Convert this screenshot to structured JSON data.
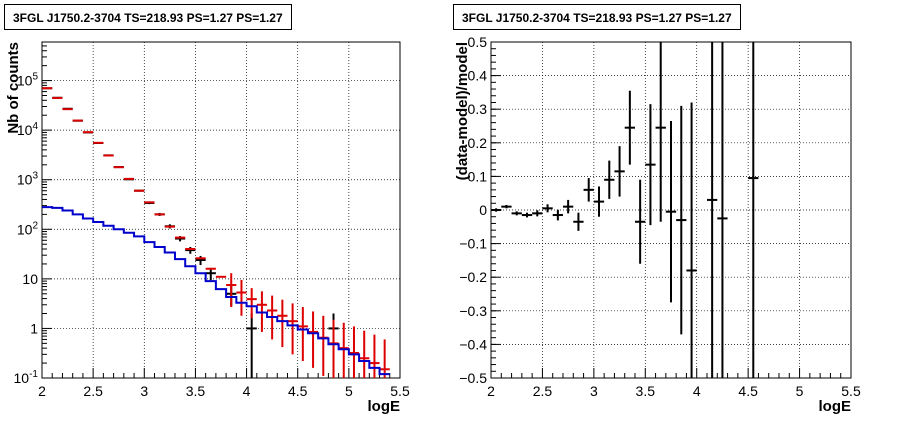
{
  "chart_data": [
    {
      "type": "line",
      "title": "3FGL J1750.2-3704 TS=218.93 PS=1.27 PS=1.27",
      "xlabel": "logE",
      "ylabel": "Nb of counts",
      "xlim": [
        2,
        5.5
      ],
      "ylim": [
        0.1,
        600000
      ],
      "yscale": "log",
      "grid": true,
      "x_ticks": [
        "2",
        "2.5",
        "3",
        "3.5",
        "4",
        "4.5",
        "5",
        "5.5"
      ],
      "y_ticks": [
        "10^{-1}",
        "1",
        "10",
        "10^{2}",
        "10^{3}",
        "10^{4}",
        "10^{5}"
      ],
      "colors": {
        "data": "#000000",
        "model_sum": "#dd0000",
        "model_source": "#0000cc"
      },
      "bin_width": 0.1,
      "x": [
        2.05,
        2.15,
        2.25,
        2.35,
        2.45,
        2.55,
        2.65,
        2.75,
        2.85,
        2.95,
        3.05,
        3.15,
        3.25,
        3.35,
        3.45,
        3.55,
        3.65,
        3.75,
        3.85,
        3.95,
        4.05,
        4.15,
        4.25,
        4.35,
        4.45,
        4.55,
        4.65,
        4.75,
        4.85,
        4.95,
        5.05,
        5.15,
        5.25,
        5.35
      ],
      "series": [
        {
          "kind": "data",
          "values": [
            70000,
            45000,
            27000,
            15500,
            9000,
            5500,
            3100,
            1800,
            1020,
            600,
            340,
            200,
            115,
            65,
            38,
            24,
            13,
            null,
            5,
            null,
            1,
            null,
            null,
            null,
            null,
            null,
            null,
            null,
            1,
            null,
            null,
            null,
            null,
            null
          ],
          "err": [
            265,
            212,
            164,
            124,
            95,
            74,
            56,
            42,
            32,
            24,
            18,
            14,
            11,
            8,
            6,
            5,
            3.6,
            null,
            2.2,
            null,
            1,
            null,
            null,
            null,
            null,
            null,
            null,
            null,
            1,
            null,
            null,
            null,
            null,
            null
          ]
        },
        {
          "kind": "model_sum",
          "values": [
            70000,
            44500,
            26500,
            15600,
            9100,
            5550,
            3080,
            1790,
            1040,
            600,
            350,
            200,
            113,
            68,
            40,
            26,
            16,
            11,
            7.5,
            5.3,
            3.9,
            3.0,
            2.3,
            1.8,
            1.4,
            1.1,
            0.85,
            0.65,
            0.5,
            0.4,
            0.32,
            0.25,
            0.2,
            0.15
          ],
          "err_low": [
            null,
            null,
            null,
            null,
            null,
            null,
            null,
            null,
            null,
            null,
            null,
            null,
            null,
            null,
            null,
            null,
            null,
            null,
            2.7,
            1.8,
            1.6,
            0.85,
            0.6,
            0.42,
            0.3,
            0.22,
            0.16,
            0.11,
            0.1,
            0.1,
            0.1,
            0.1,
            0.1,
            0.1
          ],
          "err_high": [
            null,
            null,
            null,
            null,
            null,
            null,
            null,
            null,
            null,
            null,
            null,
            null,
            null,
            null,
            null,
            null,
            null,
            null,
            13,
            9.5,
            6.5,
            5.6,
            4.6,
            3.8,
            3.2,
            2.7,
            2.2,
            1.8,
            1.5,
            1.3,
            1.1,
            0.9,
            0.75,
            0.6
          ]
        },
        {
          "kind": "model_source",
          "values": [
            280,
            270,
            240,
            200,
            165,
            140,
            118,
            100,
            85,
            72,
            55,
            44,
            34,
            25,
            18,
            13,
            9,
            6.2,
            4.3,
            3.3,
            2.8,
            2.1,
            1.7,
            1.4,
            1.15,
            0.95,
            0.8,
            0.63,
            0.48,
            0.38,
            0.3,
            0.22,
            0.16,
            0.12
          ]
        }
      ]
    },
    {
      "type": "scatter",
      "title": "3FGL J1750.2-3704 TS=218.93 PS=1.27 PS=1.27",
      "xlabel": "logE",
      "ylabel": "(data-model)/model",
      "xlim": [
        2,
        5.5
      ],
      "ylim": [
        -0.5,
        0.5
      ],
      "grid": true,
      "x_ticks": [
        "2",
        "2.5",
        "3",
        "3.5",
        "4",
        "4.5",
        "5",
        "5.5"
      ],
      "y_ticks": [
        "-0.5",
        "-0.4",
        "-0.3",
        "-0.2",
        "-0.1",
        "0",
        "0.1",
        "0.2",
        "0.3",
        "0.4",
        "0.5"
      ],
      "x": [
        2.05,
        2.15,
        2.25,
        2.35,
        2.45,
        2.55,
        2.65,
        2.75,
        2.85,
        2.95,
        3.05,
        3.15,
        3.25,
        3.35,
        3.45,
        3.55,
        3.65,
        3.75,
        3.85,
        3.95,
        4.15,
        4.25,
        4.55
      ],
      "values": [
        0.0,
        0.01,
        -0.01,
        -0.015,
        -0.01,
        0.005,
        -0.015,
        0.01,
        -0.035,
        0.06,
        0.025,
        0.09,
        0.115,
        0.245,
        -0.035,
        0.135,
        0.245,
        -0.005,
        -0.03,
        -0.18,
        0.03,
        -0.025,
        0.095
      ],
      "err": [
        0.005,
        0.005,
        0.006,
        0.007,
        0.009,
        0.012,
        0.016,
        0.02,
        0.027,
        0.035,
        0.045,
        0.057,
        0.075,
        0.11,
        0.125,
        0.18,
        0.28,
        0.27,
        0.34,
        0.5,
        0.6,
        0.6,
        0.6
      ],
      "xerr": 0.05
    }
  ]
}
